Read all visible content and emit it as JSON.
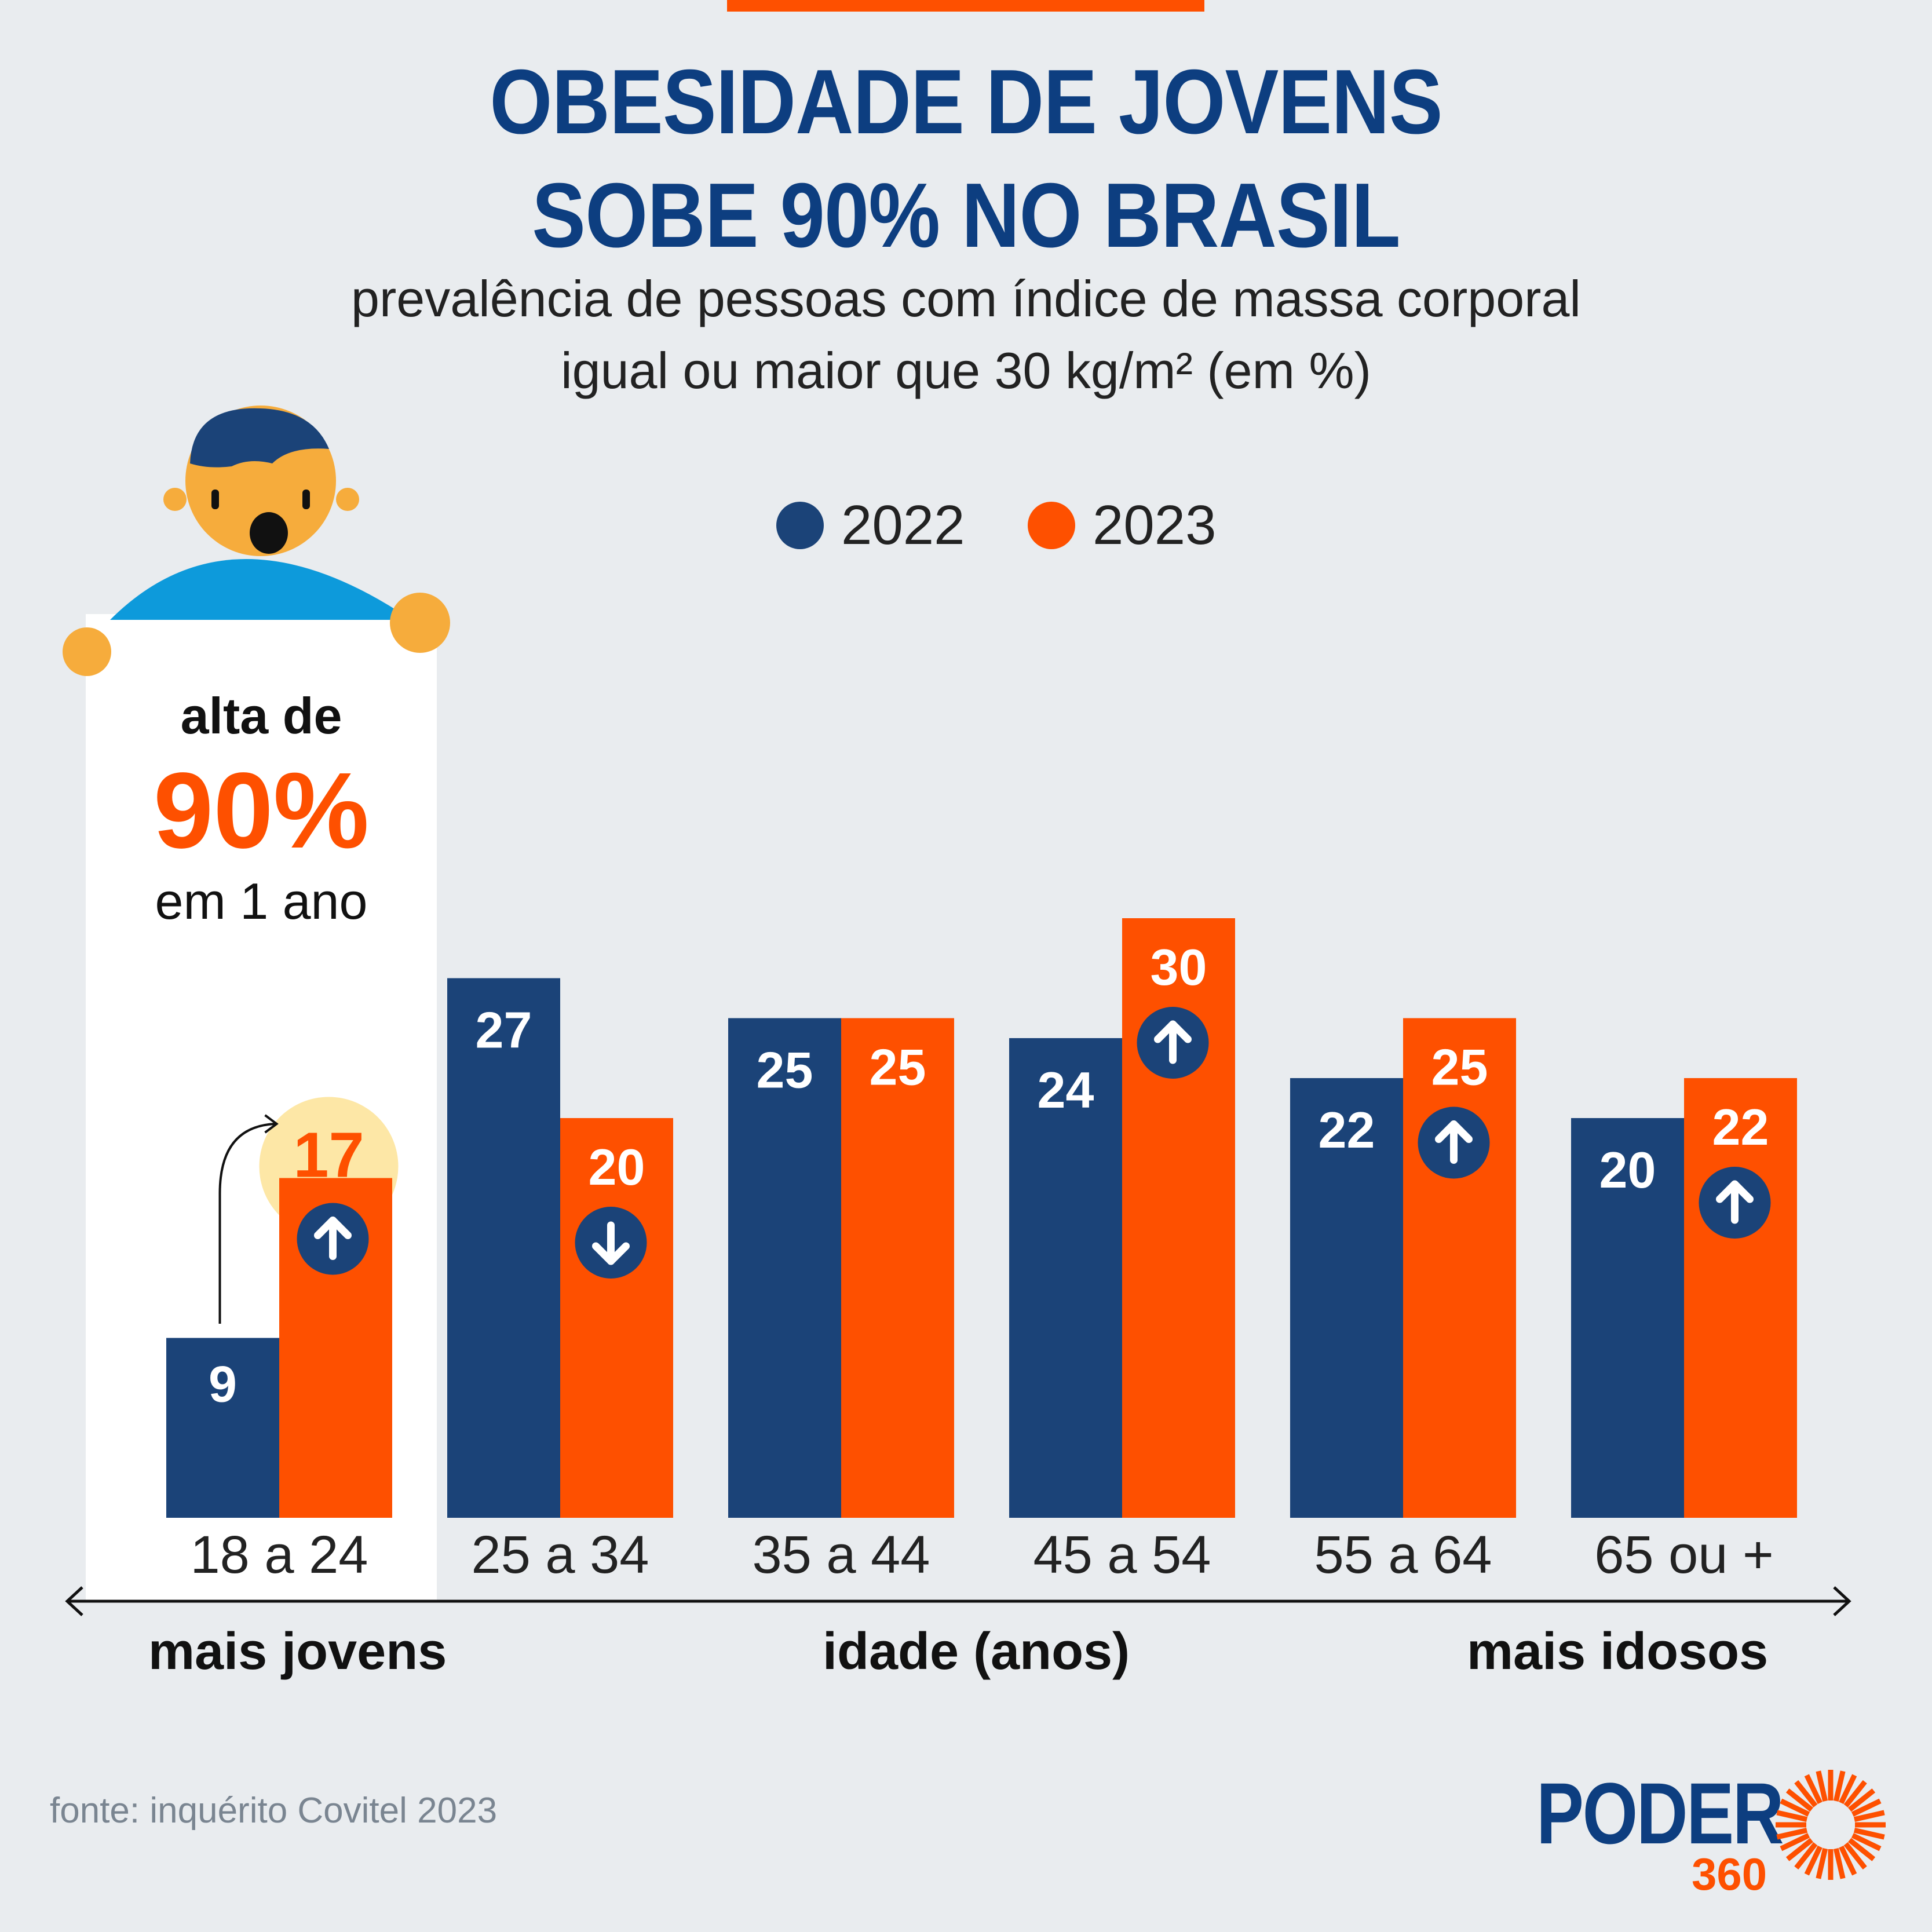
{
  "header": {
    "title_line1": "OBESIDADE DE JOVENS",
    "title_line2": "SOBE 90% NO BRASIL",
    "subtitle_line1": "prevalência de pessoas com índice de massa corporal",
    "subtitle_line2": "igual ou maior que 30 kg/m² (em %)"
  },
  "legend": [
    {
      "label": "2022",
      "color": "#1b4378"
    },
    {
      "label": "2023",
      "color": "#fe5000"
    }
  ],
  "callout": {
    "line1": "alta de",
    "line2": "90%",
    "line3": "em 1 ano"
  },
  "axis_labels": {
    "left": "mais jovens",
    "center": "idade (anos)",
    "right": "mais idosos"
  },
  "footer": {
    "source": "fonte: inquérito Covitel 2023",
    "logo_main": "PODER",
    "logo_sub": "360"
  },
  "colors": {
    "series_2022": "#1b4378",
    "series_2023": "#fe5000",
    "title": "#0d3e80",
    "highlight_circle": "#fde7a6"
  },
  "chart_data": {
    "type": "bar",
    "categories": [
      "18 a 24",
      "25 a 34",
      "35 a 44",
      "45 a 54",
      "55 a 64",
      "65 ou +"
    ],
    "series": [
      {
        "name": "2022",
        "values": [
          9,
          27,
          25,
          24,
          22,
          20
        ]
      },
      {
        "name": "2023",
        "values": [
          17,
          20,
          25,
          30,
          25,
          22
        ]
      }
    ],
    "change_icons": [
      "arrow-up-icon",
      "arrow-down-icon",
      null,
      "arrow-up-icon",
      "arrow-up-icon",
      "arrow-up-icon"
    ],
    "xlabel": "idade (anos)",
    "ylabel": "",
    "title": "OBESIDADE DE JOVENS SOBE 90% NO BRASIL",
    "grid": false,
    "legend_position": "top-center"
  }
}
